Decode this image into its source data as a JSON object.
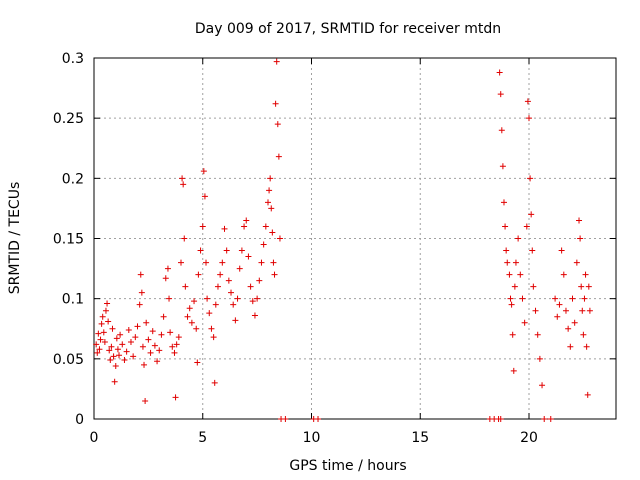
{
  "chart_data": {
    "type": "scatter",
    "title": "Day 009 of 2017, SRMTID for receiver mtdn",
    "xlabel": "GPS time / hours",
    "ylabel": "SRMTID / TECUs",
    "xlim": [
      0,
      24
    ],
    "ylim": [
      0,
      0.3
    ],
    "xticks": [
      0,
      5,
      10,
      15,
      20
    ],
    "yticks": [
      0,
      0.05,
      0.1,
      0.15,
      0.2,
      0.25,
      0.3
    ],
    "xtick_labels": [
      "0",
      "5",
      "10",
      "15",
      "20"
    ],
    "ytick_labels": [
      "0",
      "0.05",
      "0.1",
      "0.15",
      "0.2",
      "0.25",
      "0.3"
    ],
    "grid": true,
    "marker": "+",
    "color": "#e00000",
    "series": [
      {
        "name": "SRMTID",
        "points": [
          [
            0.1,
            0.062
          ],
          [
            0.15,
            0.055
          ],
          [
            0.2,
            0.071
          ],
          [
            0.25,
            0.058
          ],
          [
            0.3,
            0.066
          ],
          [
            0.35,
            0.079
          ],
          [
            0.4,
            0.085
          ],
          [
            0.45,
            0.072
          ],
          [
            0.5,
            0.064
          ],
          [
            0.55,
            0.09
          ],
          [
            0.6,
            0.096
          ],
          [
            0.65,
            0.081
          ],
          [
            0.7,
            0.057
          ],
          [
            0.75,
            0.049
          ],
          [
            0.8,
            0.06
          ],
          [
            0.85,
            0.075
          ],
          [
            0.9,
            0.052
          ],
          [
            0.95,
            0.031
          ],
          [
            1.0,
            0.044
          ],
          [
            1.05,
            0.067
          ],
          [
            1.1,
            0.058
          ],
          [
            1.15,
            0.053
          ],
          [
            1.2,
            0.07
          ],
          [
            1.3,
            0.062
          ],
          [
            1.4,
            0.049
          ],
          [
            1.5,
            0.056
          ],
          [
            1.6,
            0.074
          ],
          [
            1.7,
            0.064
          ],
          [
            1.8,
            0.052
          ],
          [
            1.9,
            0.068
          ],
          [
            2.0,
            0.077
          ],
          [
            2.1,
            0.095
          ],
          [
            2.15,
            0.12
          ],
          [
            2.2,
            0.105
          ],
          [
            2.25,
            0.06
          ],
          [
            2.3,
            0.045
          ],
          [
            2.35,
            0.015
          ],
          [
            2.4,
            0.08
          ],
          [
            2.5,
            0.066
          ],
          [
            2.6,
            0.055
          ],
          [
            2.7,
            0.073
          ],
          [
            2.8,
            0.061
          ],
          [
            2.9,
            0.048
          ],
          [
            3.0,
            0.057
          ],
          [
            3.1,
            0.07
          ],
          [
            3.2,
            0.085
          ],
          [
            3.3,
            0.117
          ],
          [
            3.4,
            0.125
          ],
          [
            3.45,
            0.1
          ],
          [
            3.5,
            0.072
          ],
          [
            3.6,
            0.06
          ],
          [
            3.7,
            0.055
          ],
          [
            3.75,
            0.018
          ],
          [
            3.8,
            0.062
          ],
          [
            3.9,
            0.068
          ],
          [
            4.0,
            0.13
          ],
          [
            4.05,
            0.2
          ],
          [
            4.1,
            0.195
          ],
          [
            4.15,
            0.15
          ],
          [
            4.2,
            0.11
          ],
          [
            4.3,
            0.085
          ],
          [
            4.4,
            0.092
          ],
          [
            4.5,
            0.08
          ],
          [
            4.6,
            0.098
          ],
          [
            4.7,
            0.075
          ],
          [
            4.75,
            0.047
          ],
          [
            4.8,
            0.12
          ],
          [
            4.9,
            0.14
          ],
          [
            5.0,
            0.16
          ],
          [
            5.05,
            0.206
          ],
          [
            5.1,
            0.185
          ],
          [
            5.15,
            0.13
          ],
          [
            5.2,
            0.1
          ],
          [
            5.3,
            0.088
          ],
          [
            5.4,
            0.075
          ],
          [
            5.5,
            0.068
          ],
          [
            5.55,
            0.03
          ],
          [
            5.6,
            0.095
          ],
          [
            5.7,
            0.11
          ],
          [
            5.8,
            0.12
          ],
          [
            5.9,
            0.13
          ],
          [
            6.0,
            0.158
          ],
          [
            6.1,
            0.14
          ],
          [
            6.2,
            0.115
          ],
          [
            6.3,
            0.105
          ],
          [
            6.4,
            0.095
          ],
          [
            6.5,
            0.082
          ],
          [
            6.6,
            0.1
          ],
          [
            6.7,
            0.125
          ],
          [
            6.8,
            0.14
          ],
          [
            6.9,
            0.16
          ],
          [
            7.0,
            0.165
          ],
          [
            7.1,
            0.135
          ],
          [
            7.2,
            0.11
          ],
          [
            7.3,
            0.098
          ],
          [
            7.4,
            0.086
          ],
          [
            7.5,
            0.1
          ],
          [
            7.6,
            0.115
          ],
          [
            7.7,
            0.13
          ],
          [
            7.8,
            0.145
          ],
          [
            7.9,
            0.16
          ],
          [
            8.0,
            0.18
          ],
          [
            8.05,
            0.19
          ],
          [
            8.1,
            0.2
          ],
          [
            8.15,
            0.175
          ],
          [
            8.2,
            0.155
          ],
          [
            8.25,
            0.13
          ],
          [
            8.3,
            0.12
          ],
          [
            8.35,
            0.262
          ],
          [
            8.4,
            0.297
          ],
          [
            8.45,
            0.245
          ],
          [
            8.5,
            0.218
          ],
          [
            8.55,
            0.15
          ],
          [
            8.6,
            0.0
          ],
          [
            8.8,
            0.0
          ],
          [
            10.1,
            0.0
          ],
          [
            10.3,
            0.0
          ],
          [
            18.2,
            0.0
          ],
          [
            18.4,
            0.0
          ],
          [
            18.6,
            0.0
          ],
          [
            18.7,
            0.0
          ],
          [
            18.65,
            0.288
          ],
          [
            18.7,
            0.27
          ],
          [
            18.75,
            0.24
          ],
          [
            18.8,
            0.21
          ],
          [
            18.85,
            0.18
          ],
          [
            18.9,
            0.16
          ],
          [
            18.95,
            0.14
          ],
          [
            19.0,
            0.13
          ],
          [
            19.1,
            0.12
          ],
          [
            19.15,
            0.1
          ],
          [
            19.2,
            0.095
          ],
          [
            19.25,
            0.07
          ],
          [
            19.3,
            0.04
          ],
          [
            19.35,
            0.11
          ],
          [
            19.4,
            0.13
          ],
          [
            19.5,
            0.15
          ],
          [
            19.6,
            0.12
          ],
          [
            19.7,
            0.1
          ],
          [
            19.8,
            0.08
          ],
          [
            19.9,
            0.16
          ],
          [
            19.95,
            0.264
          ],
          [
            20.0,
            0.25
          ],
          [
            20.05,
            0.2
          ],
          [
            20.1,
            0.17
          ],
          [
            20.15,
            0.14
          ],
          [
            20.2,
            0.11
          ],
          [
            20.3,
            0.09
          ],
          [
            20.4,
            0.07
          ],
          [
            20.5,
            0.05
          ],
          [
            20.6,
            0.028
          ],
          [
            20.7,
            0.0
          ],
          [
            21.0,
            0.0
          ],
          [
            21.2,
            0.1
          ],
          [
            21.3,
            0.085
          ],
          [
            21.4,
            0.095
          ],
          [
            21.5,
            0.14
          ],
          [
            21.6,
            0.12
          ],
          [
            21.7,
            0.09
          ],
          [
            21.8,
            0.075
          ],
          [
            21.9,
            0.06
          ],
          [
            22.0,
            0.1
          ],
          [
            22.1,
            0.08
          ],
          [
            22.2,
            0.13
          ],
          [
            22.3,
            0.165
          ],
          [
            22.35,
            0.15
          ],
          [
            22.4,
            0.11
          ],
          [
            22.45,
            0.09
          ],
          [
            22.5,
            0.07
          ],
          [
            22.55,
            0.1
          ],
          [
            22.6,
            0.12
          ],
          [
            22.65,
            0.06
          ],
          [
            22.7,
            0.02
          ],
          [
            22.75,
            0.11
          ],
          [
            22.8,
            0.09
          ]
        ]
      }
    ]
  }
}
